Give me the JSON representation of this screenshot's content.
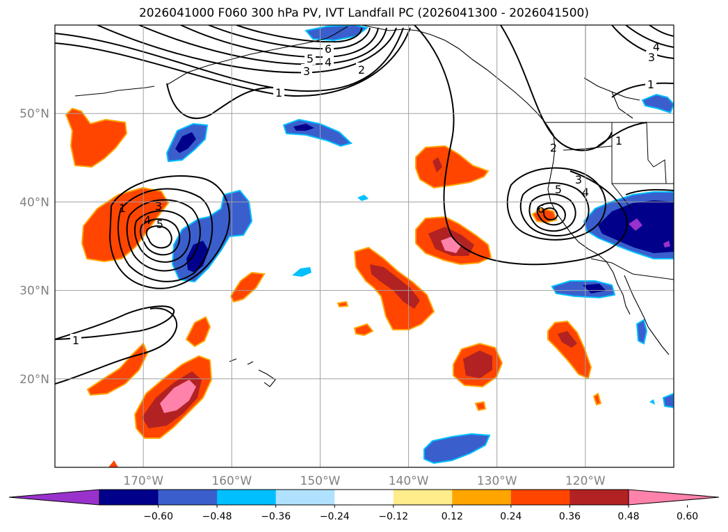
{
  "title": "2026041000 F060 300 hPa PV, IVT Landfall PC (2026041300 - 2026041500)",
  "map": {
    "projection": "equirectangular",
    "lon_range": [
      180,
      110
    ],
    "lat_range": [
      10,
      60
    ],
    "lon_ticks": [
      {
        "lon": 170,
        "label": "170°W"
      },
      {
        "lon": 160,
        "label": "160°W"
      },
      {
        "lon": 150,
        "label": "150°W"
      },
      {
        "lon": 140,
        "label": "140°W"
      },
      {
        "lon": 130,
        "label": "130°W"
      },
      {
        "lon": 120,
        "label": "120°W"
      }
    ],
    "lat_ticks": [
      {
        "lat": 50,
        "label": "50°N"
      },
      {
        "lat": 40,
        "label": "40°N"
      },
      {
        "lat": 30,
        "label": "30°N"
      },
      {
        "lat": 20,
        "label": "20°N"
      }
    ],
    "pv_contour_labels": [
      "1",
      "2",
      "3",
      "4",
      "5",
      "6"
    ]
  },
  "colorbar": {
    "ticks": [
      "−0.60",
      "−0.48",
      "−0.36",
      "−0.24",
      "−0.12",
      "0.12",
      "0.24",
      "0.36",
      "0.48",
      "0.60"
    ],
    "colors": [
      "#9932cc",
      "#00008b",
      "#3a5fcd",
      "#00bfff",
      "#b0e2ff",
      "#ffffff",
      "#ffec8b",
      "#ffa500",
      "#ff4500",
      "#b22222",
      "#ff82ab"
    ]
  }
}
